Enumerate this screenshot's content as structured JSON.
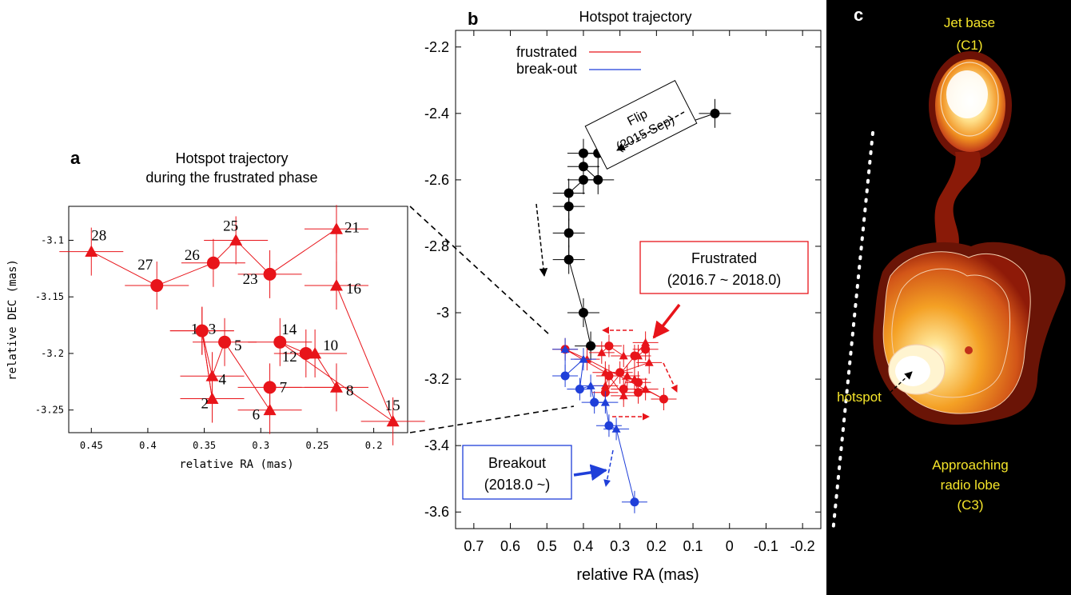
{
  "panel_a": {
    "letter": "a",
    "title_line1": "Hotspot trajectory",
    "title_line2": "during the frustrated phase",
    "xlabel": "relative RA (mas)",
    "ylabel": "relative DEC (mas)"
  },
  "panel_b": {
    "letter": "b",
    "title": "Hotspot trajectory",
    "xlabel": "relative RA (mas)",
    "legend": [
      {
        "label": "frustrated",
        "color": "#e8141a"
      },
      {
        "label": "break-out",
        "color": "#1f3fd9"
      }
    ],
    "flip_box_line1": "Flip",
    "flip_box_line2": "(2015 Sep)",
    "frustrated_box_line1": "Frustrated",
    "frustrated_box_line2": "(2016.7 ~ 2018.0)",
    "breakout_box_line1": "Breakout",
    "breakout_box_line2": "(2018.0 ~)"
  },
  "panel_c": {
    "letter": "c",
    "jet_base_line1": "Jet base",
    "jet_base_line2": "(C1)",
    "hotspot": "hotspot",
    "lobe_line1": "Approaching",
    "lobe_line2": "radio lobe",
    "lobe_line3": "(C3)"
  },
  "colors": {
    "red": "#e8141a",
    "blue": "#1f3fd9",
    "black": "#000000",
    "label_yellow": "#f5e52a"
  },
  "chart_data": [
    {
      "type": "scatter",
      "panel": "a",
      "title": "Hotspot trajectory during the frustrated phase",
      "xlabel": "relative RA (mas)",
      "ylabel": "relative DEC (mas)",
      "xlim": [
        0.47,
        0.17
      ],
      "ylim": [
        -3.27,
        -3.07
      ],
      "x_ticks": [
        "0.45",
        "0.4",
        "0.35",
        "0.3",
        "0.25",
        "0.2"
      ],
      "y_ticks": [
        "-3.1",
        "-3.15",
        "-3.2",
        "-3.25"
      ],
      "points": [
        {
          "id": "1",
          "ra": 0.352,
          "dec": -3.18,
          "marker": "circle"
        },
        {
          "id": "2",
          "ra": 0.343,
          "dec": -3.24,
          "marker": "triangle"
        },
        {
          "id": "3",
          "ra": 0.352,
          "dec": -3.18,
          "marker": "circle"
        },
        {
          "id": "4",
          "ra": 0.343,
          "dec": -3.22,
          "marker": "triangle"
        },
        {
          "id": "5",
          "ra": 0.332,
          "dec": -3.19,
          "marker": "circle"
        },
        {
          "id": "6",
          "ra": 0.292,
          "dec": -3.25,
          "marker": "triangle"
        },
        {
          "id": "7",
          "ra": 0.292,
          "dec": -3.23,
          "marker": "circle"
        },
        {
          "id": "8",
          "ra": 0.233,
          "dec": -3.23,
          "marker": "triangle"
        },
        {
          "id": "10",
          "ra": 0.252,
          "dec": -3.2,
          "marker": "triangle"
        },
        {
          "id": "12",
          "ra": 0.26,
          "dec": -3.2,
          "marker": "circle"
        },
        {
          "id": "14",
          "ra": 0.283,
          "dec": -3.19,
          "marker": "circle"
        },
        {
          "id": "15",
          "ra": 0.183,
          "dec": -3.26,
          "marker": "triangle"
        },
        {
          "id": "16",
          "ra": 0.233,
          "dec": -3.14,
          "marker": "triangle"
        },
        {
          "id": "21",
          "ra": 0.233,
          "dec": -3.09,
          "marker": "triangle"
        },
        {
          "id": "23",
          "ra": 0.292,
          "dec": -3.13,
          "marker": "circle"
        },
        {
          "id": "25",
          "ra": 0.322,
          "dec": -3.1,
          "marker": "triangle"
        },
        {
          "id": "26",
          "ra": 0.342,
          "dec": -3.12,
          "marker": "circle"
        },
        {
          "id": "27",
          "ra": 0.392,
          "dec": -3.14,
          "marker": "circle"
        },
        {
          "id": "28",
          "ra": 0.45,
          "dec": -3.11,
          "marker": "triangle"
        }
      ]
    },
    {
      "type": "scatter",
      "panel": "b",
      "title": "Hotspot trajectory",
      "xlabel": "relative RA (mas)",
      "xlim": [
        0.75,
        -0.25
      ],
      "ylim": [
        -3.65,
        -2.15
      ],
      "x_ticks": [
        "0.7",
        "0.6",
        "0.5",
        "0.4",
        "0.3",
        "0.2",
        "0.1",
        "0",
        "-0.1",
        "-0.2"
      ],
      "y_ticks": [
        "-2.2",
        "-2.4",
        "-2.6",
        "-2.8",
        "-3",
        "-3.2",
        "-3.4",
        "-3.6"
      ],
      "series": [
        {
          "name": "flip",
          "color": "#000000",
          "marker": "circle",
          "points": [
            [
              0.04,
              -2.4
            ],
            [
              0.36,
              -2.52
            ],
            [
              0.4,
              -2.52
            ],
            [
              0.4,
              -2.56
            ],
            [
              0.36,
              -2.6
            ],
            [
              0.4,
              -2.6
            ],
            [
              0.44,
              -2.64
            ],
            [
              0.44,
              -2.68
            ],
            [
              0.44,
              -2.76
            ],
            [
              0.44,
              -2.84
            ],
            [
              0.4,
              -3.0
            ],
            [
              0.38,
              -3.1
            ]
          ]
        },
        {
          "name": "frustrated",
          "color": "#e8141a",
          "points": [
            [
              0.35,
              -3.12
            ],
            [
              0.33,
              -3.1
            ],
            [
              0.29,
              -3.13
            ],
            [
              0.26,
              -3.13
            ],
            [
              0.25,
              -3.13
            ],
            [
              0.23,
              -3.11
            ],
            [
              0.23,
              -3.09
            ],
            [
              0.34,
              -3.24
            ],
            [
              0.34,
              -3.22
            ],
            [
              0.33,
              -3.19
            ],
            [
              0.29,
              -3.25
            ],
            [
              0.29,
              -3.23
            ],
            [
              0.28,
              -3.19
            ],
            [
              0.25,
              -3.21
            ],
            [
              0.26,
              -3.2
            ],
            [
              0.25,
              -3.24
            ],
            [
              0.23,
              -3.23
            ],
            [
              0.18,
              -3.26
            ],
            [
              0.39,
              -3.14
            ],
            [
              0.45,
              -3.11
            ],
            [
              0.34,
              -3.18
            ],
            [
              0.3,
              -3.18
            ],
            [
              0.22,
              -3.15
            ]
          ]
        },
        {
          "name": "break-out",
          "color": "#1f3fd9",
          "points": [
            [
              0.45,
              -3.11
            ],
            [
              0.45,
              -3.19
            ],
            [
              0.4,
              -3.14
            ],
            [
              0.41,
              -3.23
            ],
            [
              0.38,
              -3.22
            ],
            [
              0.37,
              -3.27
            ],
            [
              0.34,
              -3.27
            ],
            [
              0.33,
              -3.34
            ],
            [
              0.31,
              -3.35
            ],
            [
              0.26,
              -3.57
            ]
          ]
        }
      ]
    }
  ]
}
